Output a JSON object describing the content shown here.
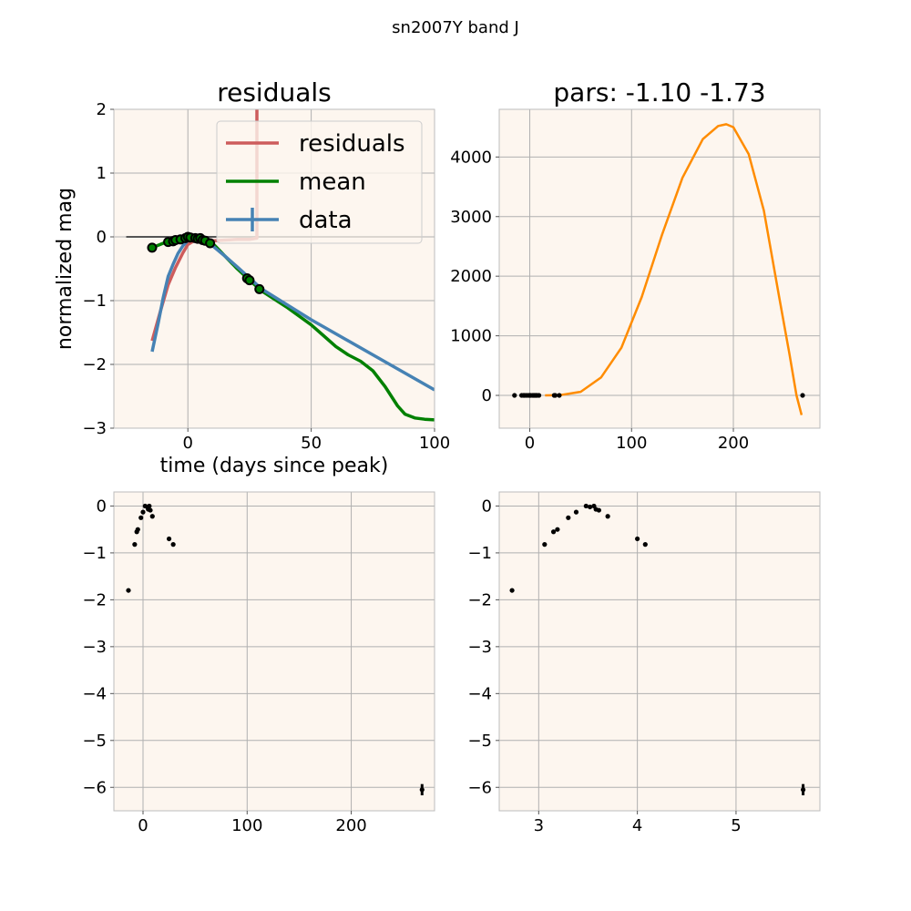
{
  "figure": {
    "suptitle": "sn2007Y band J",
    "colors": {
      "panel_bg": "#fdf6ef",
      "grid": "#b0b0b0",
      "residuals": "#cd5c5c",
      "mean": "#008000",
      "data": "#4682b4",
      "fit": "#ff8c00",
      "points": "#000000"
    }
  },
  "chart_data": [
    {
      "id": "residuals-panel",
      "type": "line",
      "title": "residuals",
      "xlabel": "time (days since peak)",
      "ylabel": "normalized mag",
      "xlim": [
        -30,
        100
      ],
      "ylim": [
        -3,
        2
      ],
      "xticks": [
        0,
        50,
        100
      ],
      "yticks": [
        2,
        1,
        0,
        -1,
        -2,
        -3
      ],
      "grid": true,
      "legend": {
        "placement": "top-right",
        "entries": [
          "residuals",
          "mean",
          "data"
        ]
      },
      "series": [
        {
          "name": "residuals",
          "color": "residuals",
          "x": [
            -14.5,
            -11,
            -8,
            -5,
            -2,
            0,
            3,
            5,
            8,
            11,
            15,
            20,
            25,
            28,
            28,
            28.5
          ],
          "y": [
            -1.63,
            -1.15,
            -0.75,
            -0.48,
            -0.25,
            -0.12,
            -0.05,
            -0.04,
            -0.06,
            -0.06,
            -0.05,
            -0.04,
            -0.04,
            -0.02,
            2.0,
            2.0
          ]
        },
        {
          "name": "mean",
          "color": "mean",
          "x": [
            -14.5,
            -10,
            -5,
            0,
            3,
            6,
            10,
            15,
            20,
            25,
            30,
            40,
            50,
            55,
            60,
            65,
            70,
            75,
            80,
            85,
            88,
            92,
            96,
            100
          ],
          "y": [
            -0.17,
            -0.1,
            -0.05,
            0,
            0,
            -0.02,
            -0.1,
            -0.3,
            -0.5,
            -0.68,
            -0.85,
            -1.1,
            -1.38,
            -1.55,
            -1.72,
            -1.85,
            -1.95,
            -2.1,
            -2.35,
            -2.65,
            -2.78,
            -2.84,
            -2.86,
            -2.87
          ]
        },
        {
          "name": "data",
          "color": "data",
          "x": [
            -14.5,
            -12,
            -10,
            -8,
            -6,
            -4,
            -2,
            0,
            2,
            4,
            6,
            8,
            10,
            15,
            20,
            30,
            50,
            75,
            100
          ],
          "y": [
            -1.8,
            -1.35,
            -0.95,
            -0.62,
            -0.43,
            -0.26,
            -0.14,
            -0.06,
            -0.01,
            0,
            -0.03,
            -0.08,
            -0.14,
            -0.3,
            -0.47,
            -0.82,
            -1.3,
            -1.85,
            -2.4
          ]
        }
      ],
      "points": {
        "x": [
          -14.5,
          -8,
          -6,
          -5,
          -3,
          -1,
          0,
          1,
          3,
          4,
          5,
          6,
          7,
          9,
          24,
          25,
          29
        ],
        "y": [
          -0.17,
          -0.08,
          -0.07,
          -0.05,
          -0.04,
          -0.02,
          0,
          -0.01,
          -0.02,
          -0.03,
          -0.02,
          -0.05,
          -0.06,
          -0.1,
          -0.65,
          -0.68,
          -0.82
        ]
      },
      "residual_baseline": {
        "x": [
          -25,
          95
        ],
        "y": [
          0,
          0
        ]
      }
    },
    {
      "id": "pars-panel",
      "type": "line",
      "title": "pars: -1.10 -1.73",
      "xlim": [
        -30,
        285
      ],
      "ylim": [
        -550,
        4800
      ],
      "xticks": [
        0,
        100,
        200
      ],
      "yticks": [
        4000,
        3000,
        2000,
        1000,
        0
      ],
      "grid": true,
      "series": [
        {
          "name": "",
          "color": "fit",
          "x": [
            15,
            30,
            50,
            70,
            90,
            110,
            130,
            150,
            170,
            185,
            193,
            200,
            215,
            230,
            245,
            255,
            262,
            267
          ],
          "y": [
            0,
            5,
            60,
            300,
            800,
            1650,
            2700,
            3650,
            4300,
            4520,
            4550,
            4500,
            4050,
            3100,
            1650,
            700,
            0,
            -330
          ]
        }
      ],
      "points": {
        "x": [
          -15,
          -8,
          -6,
          -5,
          -3,
          -1,
          0,
          1,
          3,
          4,
          5,
          6,
          7,
          9,
          24,
          25,
          29,
          268
        ],
        "y": [
          0,
          0,
          0,
          0,
          0,
          0,
          0,
          0,
          0,
          0,
          0,
          0,
          0,
          0,
          0,
          0,
          0,
          0
        ]
      }
    },
    {
      "id": "time-panel",
      "type": "scatter",
      "xlim": [
        -28,
        280
      ],
      "ylim": [
        -6.5,
        0.3
      ],
      "xticks": [
        0,
        100,
        200
      ],
      "yticks": [
        0,
        -1,
        -2,
        -3,
        -4,
        -5,
        -6
      ],
      "grid": true,
      "points": {
        "x": [
          -14,
          -8,
          -6,
          -5,
          -2,
          0,
          2,
          4,
          5,
          6,
          7,
          9,
          25,
          29,
          268
        ],
        "y": [
          -1.8,
          -0.82,
          -0.55,
          -0.5,
          -0.25,
          -0.13,
          0,
          -0.02,
          -0.07,
          0,
          -0.09,
          -0.22,
          -0.7,
          -0.82,
          -6.05
        ]
      },
      "errorbars": {
        "x": [
          268
        ],
        "y": [
          -6.05
        ],
        "err": [
          0.12
        ]
      }
    },
    {
      "id": "logtime-panel",
      "type": "scatter",
      "xlim": [
        2.6,
        5.85
      ],
      "ylim": [
        -6.5,
        0.3
      ],
      "xticks": [
        3,
        4,
        5
      ],
      "yticks": [
        0,
        -1,
        -2,
        -3,
        -4,
        -5,
        -6
      ],
      "grid": true,
      "points": {
        "x": [
          2.73,
          3.06,
          3.15,
          3.19,
          3.3,
          3.38,
          3.48,
          3.52,
          3.56,
          3.58,
          3.61,
          3.7,
          4.0,
          4.08,
          5.68
        ],
        "y": [
          -1.8,
          -0.82,
          -0.55,
          -0.5,
          -0.25,
          -0.13,
          0,
          -0.02,
          0,
          -0.07,
          -0.09,
          -0.22,
          -0.7,
          -0.82,
          -6.05
        ]
      },
      "errorbars": {
        "x": [
          5.68
        ],
        "y": [
          -6.05
        ],
        "err": [
          0.12
        ]
      }
    }
  ]
}
